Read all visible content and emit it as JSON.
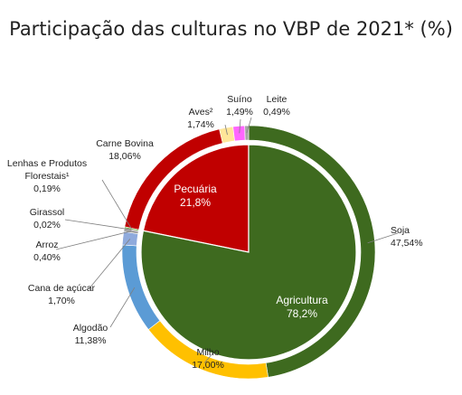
{
  "chart_data": {
    "type": "pie",
    "title": "Participação das culturas no VBP de 2021* (%)",
    "inner": [
      {
        "name": "Agricultura",
        "value": 78.2,
        "value_label": "78,2%",
        "color": "#3e6a1f"
      },
      {
        "name": "Pecuária",
        "value": 21.8,
        "value_label": "21,8%",
        "color": "#c00000"
      }
    ],
    "outer": [
      {
        "name": "Soja",
        "value": 47.54,
        "value_label": "47,54%",
        "color": "#3e6a1f"
      },
      {
        "name": "Milho",
        "value": 17.0,
        "value_label": "17,00%",
        "color": "#ffc000"
      },
      {
        "name": "Algodão",
        "value": 11.38,
        "value_label": "11,38%",
        "color": "#5b9bd5"
      },
      {
        "name": "Cana de açúcar",
        "value": 1.7,
        "value_label": "1,70%",
        "color": "#8faadc"
      },
      {
        "name": "Arroz",
        "value": 0.4,
        "value_label": "0,40%",
        "color": "#a5a5a5"
      },
      {
        "name": "Girassol",
        "value": 0.02,
        "value_label": "0,02%",
        "color": "#f4b183"
      },
      {
        "name": "Lenhas e Produtos Florestais¹",
        "value": 0.19,
        "value_label": "0,19%",
        "color": "#70ad47"
      },
      {
        "name": "Carne Bovina",
        "value": 18.06,
        "value_label": "18,06%",
        "color": "#c00000"
      },
      {
        "name": "Aves²",
        "value": 1.74,
        "value_label": "1,74%",
        "color": "#ffe699"
      },
      {
        "name": "Suíno",
        "value": 1.49,
        "value_label": "1,49%",
        "color": "#ff66ff"
      },
      {
        "name": "Leite",
        "value": 0.49,
        "value_label": "0,49%",
        "color": "#a5a5a5"
      }
    ]
  }
}
